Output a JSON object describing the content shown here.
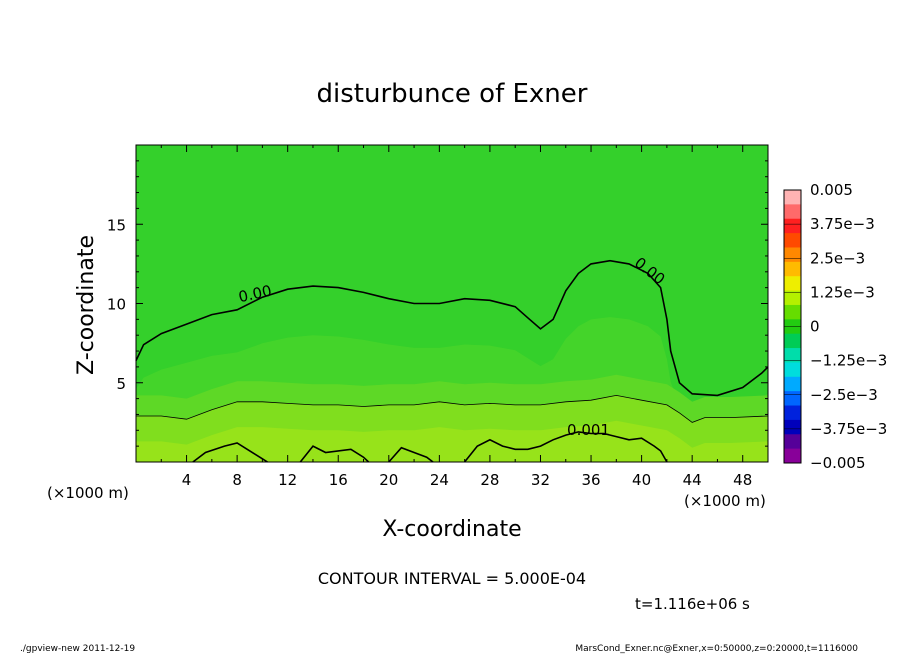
{
  "chart_data": {
    "type": "contour",
    "title": "disturbunce of Exner",
    "xlabel": "X-coordinate",
    "ylabel": "Z-coordinate",
    "x_unit": "(×1000 m)",
    "z_unit": "(×1000 m)",
    "xlim": [
      0,
      50
    ],
    "ylim": [
      0,
      20
    ],
    "x_ticks": [
      "4",
      "8",
      "12",
      "16",
      "20",
      "24",
      "28",
      "32",
      "36",
      "40",
      "44",
      "48"
    ],
    "x_tick_values": [
      4,
      8,
      12,
      16,
      20,
      24,
      28,
      32,
      36,
      40,
      44,
      48
    ],
    "y_ticks": [
      "5",
      "10",
      "15"
    ],
    "y_tick_values": [
      5,
      10,
      15
    ],
    "contour_interval_label": "CONTOUR INTERVAL = 5.000E-04",
    "time_label": "t=1.116e+06 s",
    "footer_left": "./gpview-new  2011-12-19",
    "footer_right": "MarsCond_Exner.nc@Exner,x=0:50000,z=0:20000,t=1116000",
    "contour_labels": [
      {
        "text": "0.00",
        "x": 9.5,
        "z": 10.3,
        "angle": -12
      },
      {
        "text": "0.00",
        "x": 40.4,
        "z": 11.8,
        "angle": 38
      },
      {
        "text": "0.001",
        "x": 35.8,
        "z": 1.7,
        "angle": 0
      }
    ],
    "contours": [
      {
        "level": 0.0,
        "points": [
          [
            0,
            6.4
          ],
          [
            0.6,
            7.4
          ],
          [
            2,
            8.1
          ],
          [
            4,
            8.7
          ],
          [
            6,
            9.3
          ],
          [
            8,
            9.6
          ],
          [
            10,
            10.4
          ],
          [
            12,
            10.9
          ],
          [
            14,
            11.1
          ],
          [
            16,
            11.0
          ],
          [
            18,
            10.7
          ],
          [
            20,
            10.3
          ],
          [
            22,
            10.0
          ],
          [
            24,
            10.0
          ],
          [
            26,
            10.3
          ],
          [
            28,
            10.2
          ],
          [
            30,
            9.8
          ],
          [
            31,
            9.1
          ],
          [
            32,
            8.4
          ],
          [
            33,
            9.0
          ],
          [
            34,
            10.8
          ],
          [
            35,
            11.9
          ],
          [
            36,
            12.5
          ],
          [
            37.5,
            12.7
          ],
          [
            39,
            12.5
          ],
          [
            40.5,
            11.9
          ],
          [
            41.5,
            11.0
          ],
          [
            42,
            9.0
          ],
          [
            42.3,
            7.0
          ],
          [
            43,
            5.0
          ],
          [
            44,
            4.3
          ],
          [
            46,
            4.2
          ],
          [
            48,
            4.7
          ],
          [
            49.5,
            5.6
          ],
          [
            50,
            6.0
          ]
        ]
      },
      {
        "level": 0.0005,
        "points": [
          [
            0,
            2.9
          ],
          [
            2,
            2.9
          ],
          [
            4,
            2.7
          ],
          [
            6,
            3.3
          ],
          [
            8,
            3.8
          ],
          [
            10,
            3.8
          ],
          [
            12,
            3.7
          ],
          [
            14,
            3.6
          ],
          [
            16,
            3.6
          ],
          [
            18,
            3.5
          ],
          [
            20,
            3.6
          ],
          [
            22,
            3.6
          ],
          [
            24,
            3.8
          ],
          [
            26,
            3.6
          ],
          [
            28,
            3.7
          ],
          [
            30,
            3.6
          ],
          [
            32,
            3.6
          ],
          [
            34,
            3.8
          ],
          [
            36,
            3.9
          ],
          [
            38,
            4.2
          ],
          [
            40,
            3.9
          ],
          [
            42,
            3.6
          ],
          [
            43,
            3.1
          ],
          [
            44,
            2.5
          ],
          [
            45,
            2.8
          ],
          [
            47,
            2.8
          ],
          [
            50,
            2.9
          ]
        ]
      },
      {
        "level": 0.001,
        "points": [
          [
            4.5,
            0
          ],
          [
            5.5,
            0.6
          ],
          [
            7,
            1.0
          ],
          [
            8,
            1.2
          ],
          [
            9,
            0.7
          ],
          [
            10,
            0.2
          ],
          [
            10.4,
            0
          ]
        ]
      },
      {
        "level": 0.001,
        "points": [
          [
            13,
            0
          ],
          [
            14,
            1.0
          ],
          [
            15,
            0.6
          ],
          [
            17,
            0.8
          ],
          [
            18,
            0.3
          ],
          [
            18.4,
            0
          ]
        ]
      },
      {
        "level": 0.001,
        "points": [
          [
            20,
            0
          ],
          [
            21,
            0.9
          ],
          [
            22,
            0.6
          ],
          [
            23,
            0.3
          ],
          [
            23.5,
            0
          ]
        ]
      },
      {
        "level": 0.001,
        "points": [
          [
            26,
            0
          ],
          [
            27,
            1.0
          ],
          [
            28,
            1.4
          ],
          [
            29,
            1.0
          ],
          [
            30,
            0.8
          ],
          [
            31,
            0.8
          ],
          [
            32,
            1.0
          ],
          [
            33,
            1.4
          ],
          [
            34,
            1.7
          ],
          [
            35,
            1.9
          ],
          [
            36,
            1.8
          ],
          [
            37,
            1.8
          ],
          [
            38,
            1.6
          ],
          [
            39,
            1.4
          ],
          [
            40,
            1.5
          ],
          [
            41,
            1.0
          ],
          [
            41.5,
            0.7
          ],
          [
            42,
            0
          ]
        ]
      }
    ],
    "colorbar": {
      "labels": [
        "0.005",
        "3.75e−3",
        "2.5e−3",
        "1.25e−3",
        "0",
        "−1.25e−3",
        "−2.5e−3",
        "−3.75e−3",
        "−0.005"
      ],
      "values": [
        0.005,
        0.00375,
        0.0025,
        0.00125,
        0,
        -0.00125,
        -0.0025,
        -0.00375,
        -0.005
      ],
      "colors_top_to_bottom": [
        "#ffb3b3",
        "#ff6a6a",
        "#ff2020",
        "#ff4a00",
        "#ff8800",
        "#ffbb00",
        "#eeee00",
        "#b4f000",
        "#66dd00",
        "#22cc11",
        "#00cc55",
        "#00ddaa",
        "#00dddd",
        "#00aaff",
        "#0066ff",
        "#0022dd",
        "#0000bb",
        "#550099",
        "#880099"
      ]
    },
    "fill_colors": {
      "background": "#34d02b",
      "band1": "#44d42a",
      "band2": "#5ed826",
      "band3": "#80de1e",
      "band4": "#97e31a"
    }
  }
}
